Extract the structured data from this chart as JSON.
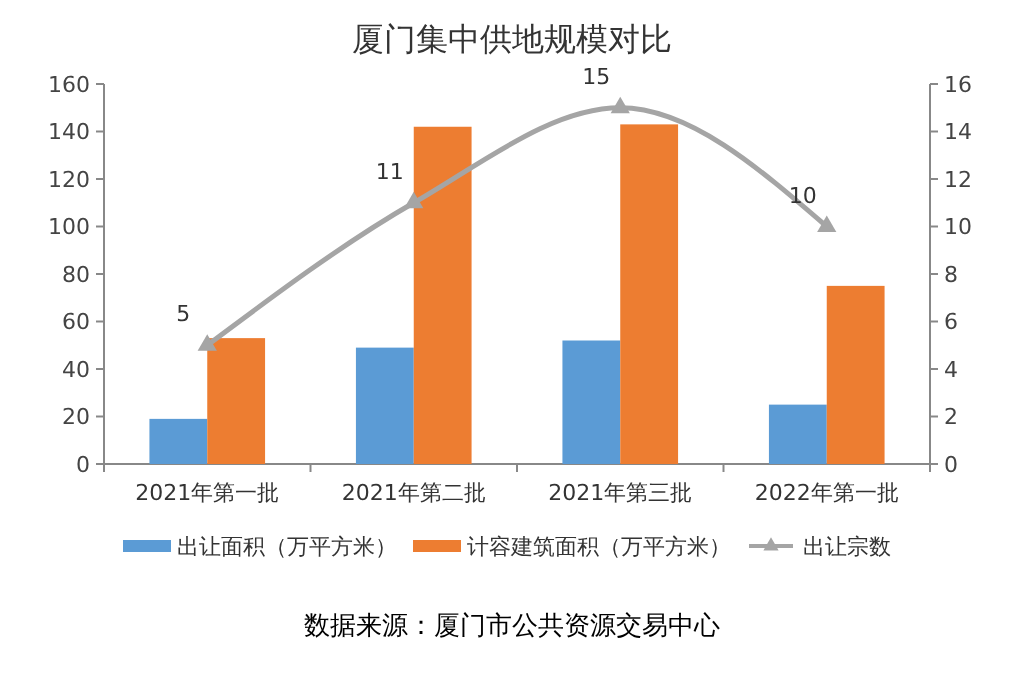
{
  "chart_data": {
    "type": "bar",
    "title": "厦门集中供地规模对比",
    "categories": [
      "2021年第一批",
      "2021年第二批",
      "2021年第三批",
      "2022年第一批"
    ],
    "series": [
      {
        "name": "出让面积（万平方米）",
        "color": "#5b9bd5",
        "values": [
          19,
          49,
          52,
          25
        ]
      },
      {
        "name": "计容建筑面积（万平方米）",
        "color": "#ed7d31",
        "values": [
          53,
          142,
          143,
          75
        ]
      },
      {
        "name": "出让宗数",
        "type": "line",
        "axis": "y2",
        "color": "#a5a5a5",
        "marker": "triangle",
        "values": [
          5,
          11,
          15,
          10
        ],
        "value_labels": [
          "5",
          "11",
          "15",
          "10"
        ]
      }
    ],
    "ylim": [
      0,
      160
    ],
    "yticks": [
      0,
      20,
      40,
      60,
      80,
      100,
      120,
      140,
      160
    ],
    "y2lim": [
      0,
      16
    ],
    "y2ticks": [
      0,
      2,
      4,
      6,
      8,
      10,
      12,
      14,
      16
    ],
    "legend": "bottom",
    "annotations": [
      "数据来源：厦门市公共资源交易中心"
    ]
  }
}
